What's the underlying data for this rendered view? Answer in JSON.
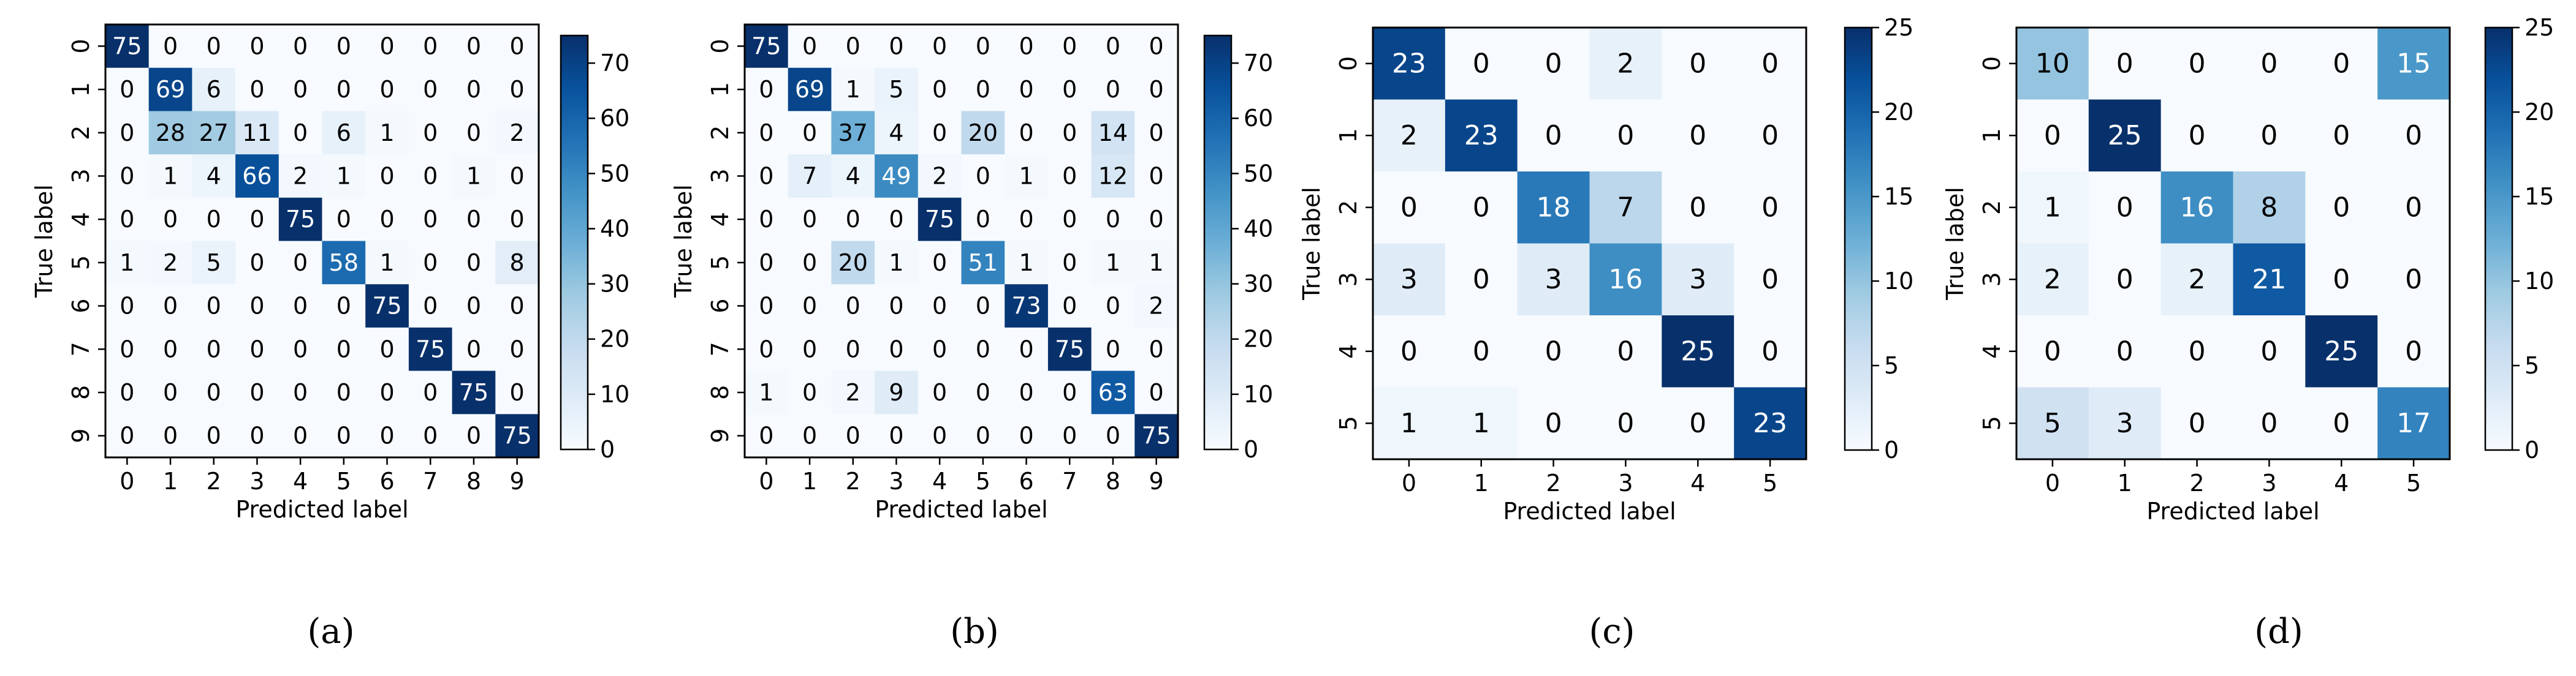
{
  "figure": {
    "common": {
      "xlabel": "Predicted label",
      "ylabel": "True label",
      "colormap": "Blues",
      "colors": {
        "low": "#f7fbff",
        "high": "#08306b",
        "text_dark": "#000000",
        "text_light": "#ffffff"
      }
    }
  },
  "chart_data": [
    {
      "type": "heatmap",
      "caption": "(a)",
      "xlabel": "Predicted label",
      "ylabel": "True label",
      "x_categories": [
        "0",
        "1",
        "2",
        "3",
        "4",
        "5",
        "6",
        "7",
        "8",
        "9"
      ],
      "y_categories": [
        "0",
        "1",
        "2",
        "3",
        "4",
        "5",
        "6",
        "7",
        "8",
        "9"
      ],
      "vmin": 0,
      "vmax": 75,
      "colorbar_ticks": [
        0,
        10,
        20,
        30,
        40,
        50,
        60,
        70
      ],
      "matrix": [
        [
          75,
          0,
          0,
          0,
          0,
          0,
          0,
          0,
          0,
          0
        ],
        [
          0,
          69,
          6,
          0,
          0,
          0,
          0,
          0,
          0,
          0
        ],
        [
          0,
          28,
          27,
          11,
          0,
          6,
          1,
          0,
          0,
          2
        ],
        [
          0,
          1,
          4,
          66,
          2,
          1,
          0,
          0,
          1,
          0
        ],
        [
          0,
          0,
          0,
          0,
          75,
          0,
          0,
          0,
          0,
          0
        ],
        [
          1,
          2,
          5,
          0,
          0,
          58,
          1,
          0,
          0,
          8
        ],
        [
          0,
          0,
          0,
          0,
          0,
          0,
          75,
          0,
          0,
          0
        ],
        [
          0,
          0,
          0,
          0,
          0,
          0,
          0,
          75,
          0,
          0
        ],
        [
          0,
          0,
          0,
          0,
          0,
          0,
          0,
          0,
          75,
          0
        ],
        [
          0,
          0,
          0,
          0,
          0,
          0,
          0,
          0,
          0,
          75
        ]
      ]
    },
    {
      "type": "heatmap",
      "caption": "(b)",
      "xlabel": "Predicted label",
      "ylabel": "True label",
      "x_categories": [
        "0",
        "1",
        "2",
        "3",
        "4",
        "5",
        "6",
        "7",
        "8",
        "9"
      ],
      "y_categories": [
        "0",
        "1",
        "2",
        "3",
        "4",
        "5",
        "6",
        "7",
        "8",
        "9"
      ],
      "vmin": 0,
      "vmax": 75,
      "colorbar_ticks": [
        0,
        10,
        20,
        30,
        40,
        50,
        60,
        70
      ],
      "matrix": [
        [
          75,
          0,
          0,
          0,
          0,
          0,
          0,
          0,
          0,
          0
        ],
        [
          0,
          69,
          1,
          5,
          0,
          0,
          0,
          0,
          0,
          0
        ],
        [
          0,
          0,
          37,
          4,
          0,
          20,
          0,
          0,
          14,
          0
        ],
        [
          0,
          7,
          4,
          49,
          2,
          0,
          1,
          0,
          12,
          0
        ],
        [
          0,
          0,
          0,
          0,
          75,
          0,
          0,
          0,
          0,
          0
        ],
        [
          0,
          0,
          20,
          1,
          0,
          51,
          1,
          0,
          1,
          1
        ],
        [
          0,
          0,
          0,
          0,
          0,
          0,
          73,
          0,
          0,
          2
        ],
        [
          0,
          0,
          0,
          0,
          0,
          0,
          0,
          75,
          0,
          0
        ],
        [
          1,
          0,
          2,
          9,
          0,
          0,
          0,
          0,
          63,
          0
        ],
        [
          0,
          0,
          0,
          0,
          0,
          0,
          0,
          0,
          0,
          75
        ]
      ]
    },
    {
      "type": "heatmap",
      "caption": "(c)",
      "xlabel": "Predicted label",
      "ylabel": "True label",
      "x_categories": [
        "0",
        "1",
        "2",
        "3",
        "4",
        "5"
      ],
      "y_categories": [
        "0",
        "1",
        "2",
        "3",
        "4",
        "5"
      ],
      "vmin": 0,
      "vmax": 25,
      "colorbar_ticks": [
        0,
        5,
        10,
        15,
        20,
        25
      ],
      "matrix": [
        [
          23,
          0,
          0,
          2,
          0,
          0
        ],
        [
          2,
          23,
          0,
          0,
          0,
          0
        ],
        [
          0,
          0,
          18,
          7,
          0,
          0
        ],
        [
          3,
          0,
          3,
          16,
          3,
          0
        ],
        [
          0,
          0,
          0,
          0,
          25,
          0
        ],
        [
          1,
          1,
          0,
          0,
          0,
          23
        ]
      ]
    },
    {
      "type": "heatmap",
      "caption": "(d)",
      "xlabel": "Predicted label",
      "ylabel": "True label",
      "x_categories": [
        "0",
        "1",
        "2",
        "3",
        "4",
        "5"
      ],
      "y_categories": [
        "0",
        "1",
        "2",
        "3",
        "4",
        "5"
      ],
      "vmin": 0,
      "vmax": 25,
      "colorbar_ticks": [
        0,
        5,
        10,
        15,
        20,
        25
      ],
      "matrix": [
        [
          10,
          0,
          0,
          0,
          0,
          15
        ],
        [
          0,
          25,
          0,
          0,
          0,
          0
        ],
        [
          1,
          0,
          16,
          8,
          0,
          0
        ],
        [
          2,
          0,
          2,
          21,
          0,
          0
        ],
        [
          0,
          0,
          0,
          0,
          25,
          0
        ],
        [
          5,
          3,
          0,
          0,
          0,
          17
        ]
      ]
    }
  ]
}
